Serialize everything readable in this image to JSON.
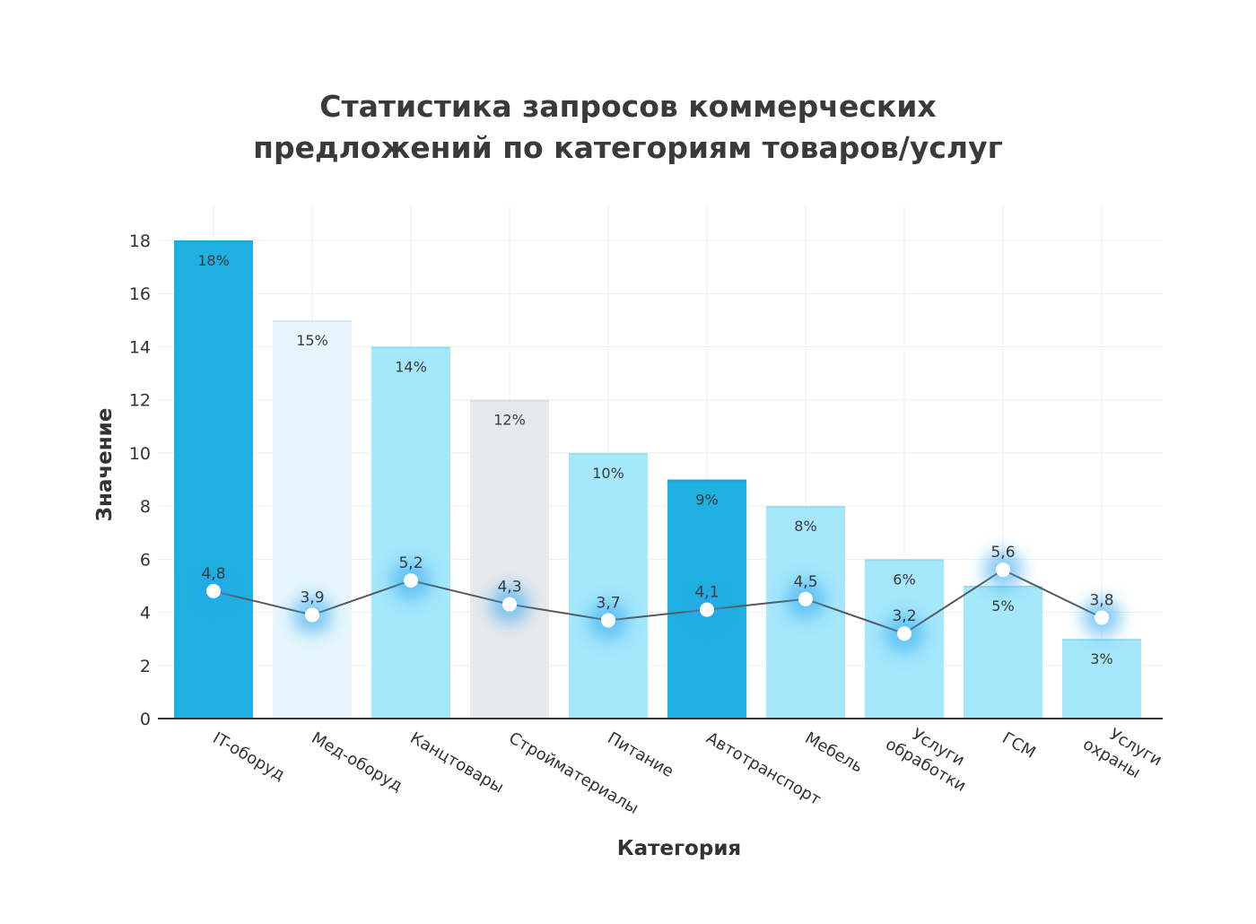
{
  "chart_data": {
    "type": "bar",
    "title_lines": [
      "Статистика запросов коммерческих",
      "предложений по категориям товаров/услуг"
    ],
    "xlabel": "Категория",
    "ylabel": "Значение",
    "ylim": [
      0,
      18
    ],
    "yticks": [
      "0",
      "2",
      "4",
      "6",
      "8",
      "10",
      "12",
      "14",
      "16",
      "18"
    ],
    "grid": true,
    "categories": [
      [
        "IT-оборуд"
      ],
      [
        "Мед-оборуд"
      ],
      [
        "Канцтовары"
      ],
      [
        "Стройматериалы"
      ],
      [
        "Питание"
      ],
      [
        "Автотранспорт"
      ],
      [
        "Мебель"
      ],
      [
        "Услуги",
        "обработки"
      ],
      [
        "ГСМ"
      ],
      [
        "Услуги",
        "охраны"
      ]
    ],
    "series": [
      {
        "type": "bar",
        "values": [
          18,
          15,
          14,
          12,
          10,
          9,
          8,
          6,
          5,
          3
        ],
        "labels": [
          "18%",
          "15%",
          "14%",
          "12%",
          "10%",
          "9%",
          "8%",
          "6%",
          "5%",
          "3%"
        ]
      },
      {
        "type": "line",
        "values": [
          4.8,
          3.9,
          5.2,
          4.3,
          3.7,
          4.1,
          4.5,
          3.2,
          5.6,
          3.8
        ],
        "labels": [
          "4,8",
          "3,9",
          "5,2",
          "4,3",
          "3,7",
          "4,1",
          "4,5",
          "3,2",
          "5,6",
          "3,8"
        ]
      }
    ],
    "colors": {
      "bars": [
        "#1eb0e0",
        "#e6f6fc",
        "#a5e7fb",
        "#e6e9ec",
        "#a5e7fb",
        "#1eb0e0",
        "#a5e7fb",
        "#a5e7fb",
        "#a5e7fb",
        "#a5e7fb"
      ],
      "line": "#555a5e",
      "marker": "#ffffff",
      "glow": "#2aa4f0"
    }
  }
}
